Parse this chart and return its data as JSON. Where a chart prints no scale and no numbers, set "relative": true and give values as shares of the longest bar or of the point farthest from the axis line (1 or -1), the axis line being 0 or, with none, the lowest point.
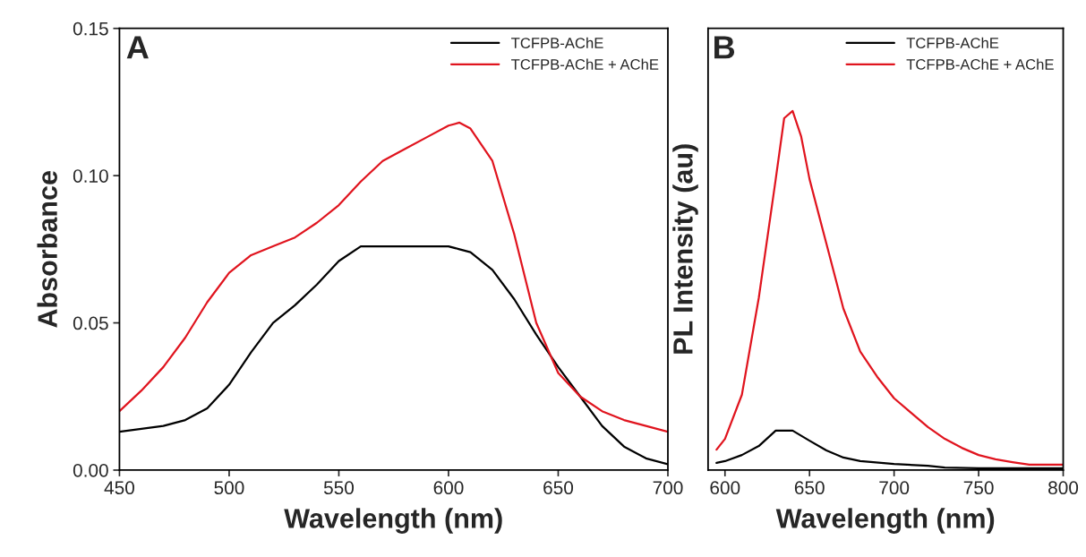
{
  "chart_data": [
    {
      "type": "line",
      "xlabel": "Wavelength (nm)",
      "ylabel": "Absorbance",
      "annotations": [
        "A"
      ],
      "xlim": [
        450,
        700
      ],
      "xticks": [
        450,
        500,
        550,
        600,
        650,
        700
      ],
      "ylim": [
        0,
        0.15
      ],
      "yticks": [
        {
          "value": 0,
          "label": "0.00"
        },
        {
          "value": 0.05,
          "label": "0.05"
        },
        {
          "value": 0.1,
          "label": "0.10"
        },
        {
          "value": 0.15,
          "label": "0.15"
        }
      ],
      "legend": "top right",
      "grid": false,
      "series": [
        {
          "name": "TCFPB-AChE",
          "color": "#000000",
          "x": [
            450,
            470,
            480,
            490,
            500,
            510,
            520,
            530,
            540,
            550,
            560,
            570,
            580,
            590,
            600,
            605,
            610,
            620,
            630,
            640,
            650,
            660,
            670,
            680,
            690,
            700
          ],
          "values": [
            0.013,
            0.015,
            0.017,
            0.021,
            0.029,
            0.04,
            0.05,
            0.056,
            0.063,
            0.071,
            0.076,
            0.076,
            0.076,
            0.076,
            0.076,
            0.075,
            0.074,
            0.068,
            0.058,
            0.046,
            0.035,
            0.025,
            0.015,
            0.008,
            0.004,
            0.002
          ]
        },
        {
          "name": "TCFPB-AChE + AChE",
          "color": "#e0141e",
          "x": [
            450,
            460,
            470,
            480,
            490,
            500,
            510,
            520,
            530,
            540,
            550,
            560,
            570,
            580,
            590,
            600,
            605,
            610,
            620,
            630,
            640,
            650,
            660,
            670,
            680,
            690,
            700
          ],
          "values": [
            0.02,
            0.027,
            0.035,
            0.045,
            0.057,
            0.067,
            0.073,
            0.076,
            0.079,
            0.084,
            0.09,
            0.098,
            0.105,
            0.109,
            0.113,
            0.117,
            0.118,
            0.116,
            0.105,
            0.08,
            0.05,
            0.033,
            0.025,
            0.02,
            0.017,
            0.015,
            0.013
          ]
        }
      ]
    },
    {
      "type": "line",
      "xlabel": "Wavelength (nm)",
      "ylabel": "PL Intensity (au)",
      "annotations": [
        "B"
      ],
      "xlim": [
        590,
        800
      ],
      "xticks": [
        600,
        650,
        700,
        750,
        800
      ],
      "relative": true,
      "tick_labels": "x",
      "legend": "top right",
      "grid": false,
      "series": [
        {
          "name": "TCFPB-AChE",
          "color": "#000000",
          "x": [
            595,
            600,
            610,
            620,
            630,
            640,
            650,
            660,
            670,
            680,
            700,
            720,
            730,
            750,
            800
          ],
          "values": [
            0.02,
            0.025,
            0.042,
            0.067,
            0.11,
            0.11,
            0.082,
            0.055,
            0.035,
            0.025,
            0.017,
            0.012,
            0.007,
            0.005,
            0.005
          ]
        },
        {
          "name": "TCFPB-AChE + AChE",
          "color": "#e0141e",
          "x": [
            595,
            600,
            610,
            620,
            630,
            635,
            640,
            645,
            650,
            660,
            670,
            680,
            690,
            700,
            710,
            720,
            730,
            740,
            750,
            760,
            770,
            780,
            790,
            800
          ],
          "values": [
            0.057,
            0.087,
            0.21,
            0.48,
            0.81,
            0.98,
            1.0,
            0.93,
            0.81,
            0.63,
            0.45,
            0.33,
            0.26,
            0.2,
            0.16,
            0.12,
            0.087,
            0.062,
            0.042,
            0.03,
            0.022,
            0.015,
            0.015,
            0.015
          ]
        }
      ]
    }
  ]
}
